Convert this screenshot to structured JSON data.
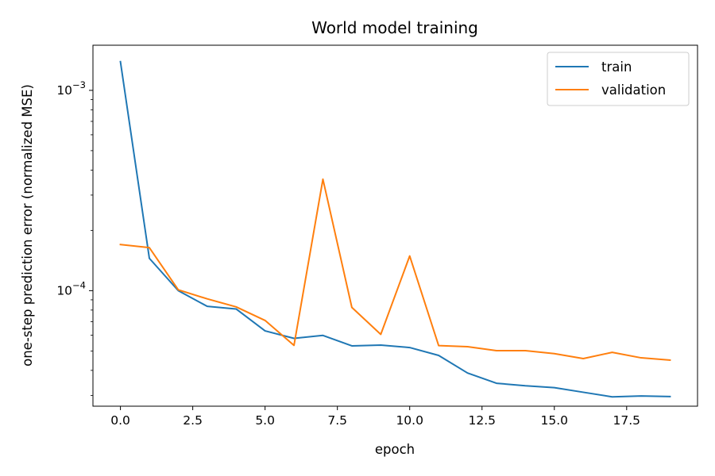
{
  "chart_data": {
    "type": "line",
    "title": "World model training",
    "xlabel": "epoch",
    "ylabel": "one-step prediction error (normalized MSE)",
    "x": [
      0,
      1,
      2,
      3,
      4,
      5,
      6,
      7,
      8,
      9,
      10,
      11,
      12,
      13,
      14,
      15,
      16,
      17,
      18,
      19
    ],
    "xlim": [
      -0.95,
      19.95
    ],
    "ylim": [
      2.65e-05,
      0.00168
    ],
    "yscale": "log",
    "grid": false,
    "legend_position": "top-right",
    "x_ticks": [
      0.0,
      2.5,
      5.0,
      7.5,
      10.0,
      12.5,
      15.0,
      17.5
    ],
    "x_tick_labels": [
      "0.0",
      "2.5",
      "5.0",
      "7.5",
      "10.0",
      "12.5",
      "15.0",
      "17.5"
    ],
    "y_major_ticks": [
      {
        "value": 0.0001,
        "base": "10",
        "exp": "−4"
      },
      {
        "value": 0.001,
        "base": "10",
        "exp": "−3"
      }
    ],
    "series": [
      {
        "name": "train",
        "color": "#1f77b4",
        "values": [
          0.00139,
          0.000145,
          0.0001,
          8.35e-05,
          8.1e-05,
          6.3e-05,
          5.78e-05,
          5.98e-05,
          5.3e-05,
          5.35e-05,
          5.2e-05,
          4.75e-05,
          3.88e-05,
          3.45e-05,
          3.35e-05,
          3.28e-05,
          3.11e-05,
          2.95e-05,
          2.98e-05,
          2.96e-05
        ]
      },
      {
        "name": "validation",
        "color": "#ff7f0e",
        "values": [
          0.00017,
          0.000164,
          0.000101,
          9.1e-05,
          8.3e-05,
          7.1e-05,
          5.33e-05,
          0.00036,
          8.25e-05,
          6.05e-05,
          0.000149,
          5.32e-05,
          5.25e-05,
          5.02e-05,
          5.02e-05,
          4.85e-05,
          4.58e-05,
          4.92e-05,
          4.62e-05,
          4.5e-05
        ]
      }
    ]
  }
}
